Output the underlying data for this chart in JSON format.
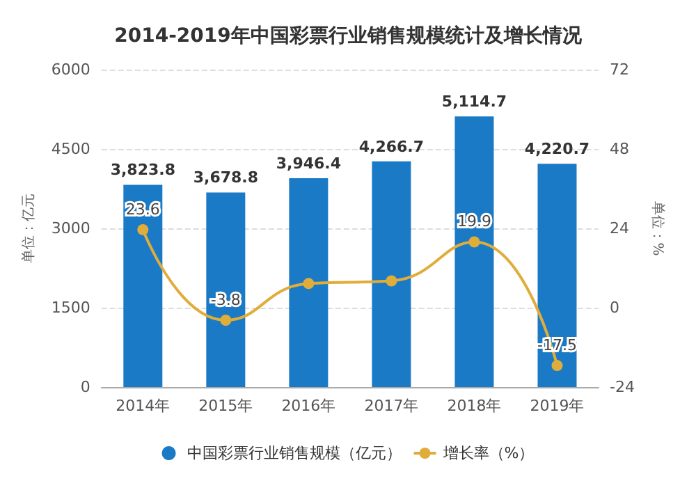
{
  "chart_data": {
    "type": "bar",
    "title": "2014-2019年中国彩票行业销售规模统计及增长情况",
    "categories": [
      "2014年",
      "2015年",
      "2016年",
      "2017年",
      "2018年",
      "2019年"
    ],
    "series": [
      {
        "name": "中国彩票行业销售规模（亿元）",
        "color": "#1a7ac6",
        "values": [
          3823.8,
          3678.8,
          3946.4,
          4266.7,
          5114.7,
          4220.7
        ],
        "value_labels": [
          "3,823.8",
          "3,678.8",
          "3,946.4",
          "4,266.7",
          "5,114.7",
          "4,220.7"
        ]
      },
      {
        "name": "增长率（%）",
        "type": "line",
        "axis": "y2",
        "color": "#e0ad3a",
        "values": [
          23.6,
          -3.8,
          7.3,
          8.1,
          19.9,
          -17.5
        ],
        "value_labels": [
          "23.6",
          "-3.8",
          null,
          null,
          "19.9",
          "-17.5"
        ]
      }
    ],
    "ylabel": "单位：亿元",
    "y2label": "单位：%",
    "ylim": [
      0,
      6000
    ],
    "yticks": [
      0,
      1500,
      3000,
      4500,
      6000
    ],
    "y2lim": [
      -24,
      72
    ],
    "y2ticks": [
      -24,
      0,
      24,
      48,
      72
    ],
    "grid": "y",
    "legend": "bottom",
    "marker": "circle"
  }
}
